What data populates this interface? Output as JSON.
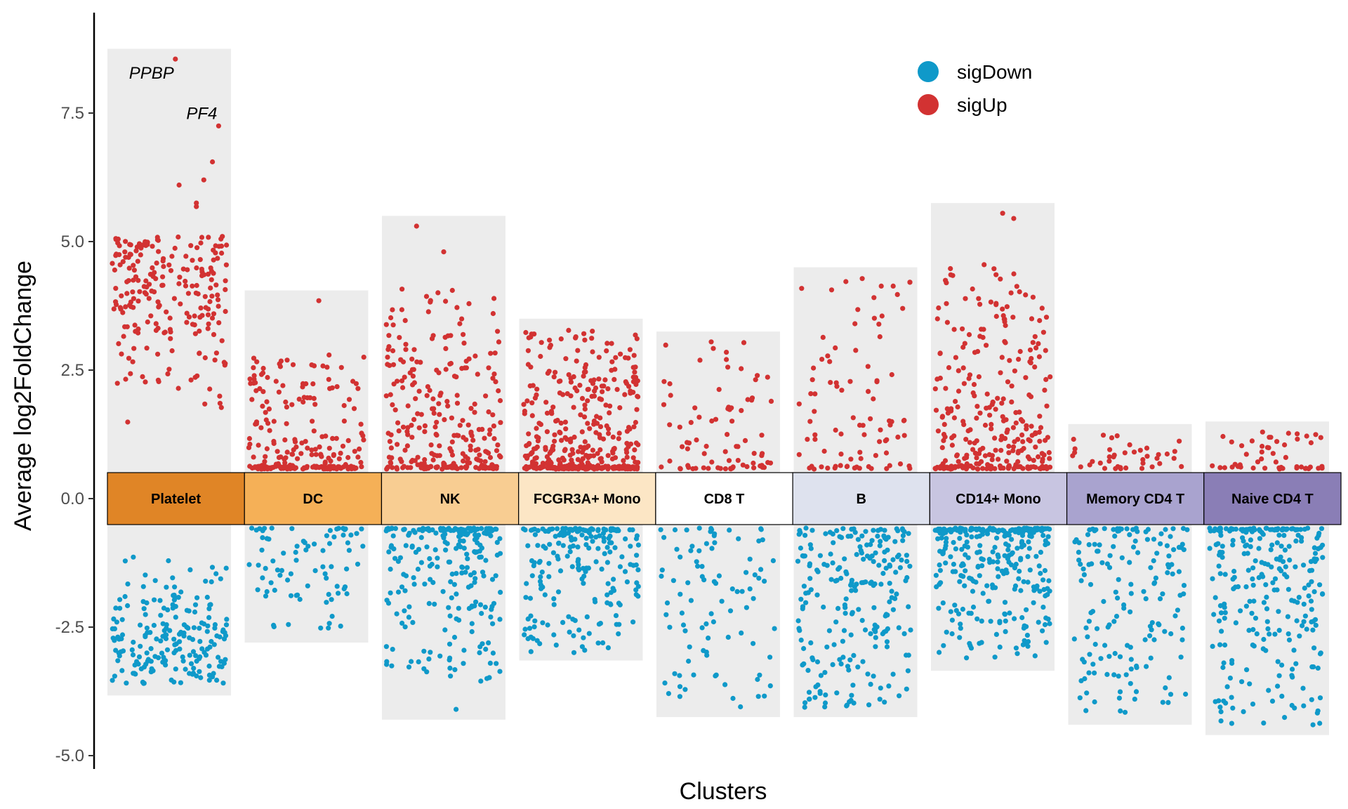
{
  "chart_data": {
    "type": "scatter",
    "title": "",
    "xlabel": "Clusters",
    "ylabel": "Average log2FoldChange",
    "ylim": [
      -5.0,
      9.0
    ],
    "yticks": [
      7.5,
      5.0,
      2.5,
      0.0,
      -2.5,
      -5.0
    ],
    "ytick_labels": [
      "7.5",
      "5.0",
      "2.5",
      "0.0",
      "-2.5",
      "-5.0"
    ],
    "grid": false,
    "legend": {
      "placement": "top-right",
      "entries": [
        {
          "label": "sigDown",
          "color": "#0f99c9"
        },
        {
          "label": "sigUp",
          "color": "#d23232"
        }
      ]
    },
    "clusters": [
      {
        "name": "Platelet",
        "color": "#e08526",
        "up_max": 8.75,
        "down_min": -3.83,
        "n_up": 220,
        "n_down": 200,
        "up_range": [
          1.0,
          5.1
        ],
        "down_range": [
          -3.6,
          -0.9
        ],
        "up_skew": 0.45,
        "down_skew": 0.5,
        "outliers_up": [
          [
            0.55,
            8.55
          ],
          [
            0.9,
            7.25
          ],
          [
            0.85,
            6.55
          ],
          [
            0.58,
            6.1
          ],
          [
            0.78,
            6.2
          ],
          [
            0.72,
            5.75
          ],
          [
            0.72,
            5.68
          ],
          [
            0.93,
            5.1
          ]
        ],
        "outliers_down": [],
        "labels": [
          {
            "text": "PPBP",
            "x": 0.55,
            "y": 8.55,
            "anchor": "end",
            "dx": -2,
            "dy": 28
          },
          {
            "text": "PF4",
            "x": 0.9,
            "y": 7.25,
            "anchor": "end",
            "dx": -2,
            "dy": -10
          }
        ]
      },
      {
        "name": "DC",
        "color": "#f5b057",
        "up_max": 4.05,
        "down_min": -2.8,
        "n_up": 230,
        "n_down": 80,
        "up_range": [
          0.5,
          2.8
        ],
        "down_range": [
          -2.6,
          -0.5
        ],
        "up_skew": 2.6,
        "down_skew": 1.5,
        "outliers_up": [
          [
            0.6,
            3.85
          ]
        ],
        "outliers_down": [],
        "labels": []
      },
      {
        "name": "NK",
        "color": "#f8cd92",
        "up_max": 5.5,
        "down_min": -4.3,
        "n_up": 270,
        "n_down": 230,
        "up_range": [
          0.5,
          4.1
        ],
        "down_range": [
          -3.5,
          -0.5
        ],
        "up_skew": 2.4,
        "down_skew": 2.2,
        "outliers_up": [
          [
            0.28,
            5.3
          ],
          [
            0.5,
            4.8
          ],
          [
            0.57,
            4.05
          ],
          [
            0.9,
            3.6
          ]
        ],
        "outliers_down": [
          [
            0.6,
            -4.1
          ],
          [
            0.85,
            -3.5
          ],
          [
            0.8,
            -3.55
          ]
        ],
        "labels": []
      },
      {
        "name": "FCGR3A+ Mono",
        "color": "#fce6c5",
        "up_max": 3.5,
        "down_min": -3.15,
        "n_up": 400,
        "n_down": 210,
        "up_range": [
          0.5,
          3.3
        ],
        "down_range": [
          -3.0,
          -0.5
        ],
        "up_skew": 2.6,
        "down_skew": 2.0,
        "outliers_up": [],
        "outliers_down": [
          [
            0.28,
            -2.65
          ],
          [
            0.3,
            -2.85
          ],
          [
            0.53,
            -2.95
          ]
        ],
        "labels": []
      },
      {
        "name": "CD8 T",
        "color": "#ffffff",
        "up_max": 3.25,
        "down_min": -4.25,
        "n_up": 80,
        "n_down": 90,
        "up_range": [
          0.5,
          3.05
        ],
        "down_range": [
          -3.9,
          -0.5
        ],
        "up_skew": 2.0,
        "down_skew": 1.3,
        "outliers_up": [],
        "outliers_down": [
          [
            0.68,
            -4.05
          ],
          [
            0.19,
            -3.85
          ]
        ],
        "labels": []
      },
      {
        "name": "B",
        "color": "#dee2ee",
        "up_max": 4.5,
        "down_min": -4.25,
        "n_up": 90,
        "n_down": 230,
        "up_range": [
          0.5,
          4.3
        ],
        "down_range": [
          -4.1,
          -0.5
        ],
        "up_skew": 1.6,
        "down_skew": 1.3,
        "outliers_up": [],
        "outliers_down": [],
        "labels": []
      },
      {
        "name": "CD14+ Mono",
        "color": "#c8c5e1",
        "up_max": 5.75,
        "down_min": -3.35,
        "n_up": 290,
        "n_down": 300,
        "up_range": [
          0.5,
          4.5
        ],
        "down_range": [
          -3.1,
          -0.5
        ],
        "up_skew": 2.3,
        "down_skew": 2.2,
        "outliers_up": [
          [
            0.58,
            5.55
          ],
          [
            0.67,
            5.45
          ],
          [
            0.43,
            4.55
          ]
        ],
        "outliers_down": [],
        "labels": []
      },
      {
        "name": "Memory CD4 T",
        "color": "#a9a3cf",
        "up_max": 1.45,
        "down_min": -4.4,
        "n_up": 40,
        "n_down": 160,
        "up_range": [
          0.5,
          1.3
        ],
        "down_range": [
          -4.2,
          -0.5
        ],
        "up_skew": 1.6,
        "down_skew": 1.7,
        "outliers_up": [],
        "outliers_down": [],
        "labels": []
      },
      {
        "name": "Naive CD4 T",
        "color": "#8a7eb6",
        "up_max": 1.5,
        "down_min": -4.6,
        "n_up": 50,
        "n_down": 260,
        "up_range": [
          0.5,
          1.3
        ],
        "down_range": [
          -4.4,
          -0.5
        ],
        "up_skew": 2.0,
        "down_skew": 1.8,
        "outliers_up": [],
        "outliers_down": [
          [
            0.87,
            -4.4
          ],
          [
            0.08,
            -3.95
          ]
        ],
        "labels": []
      }
    ]
  }
}
